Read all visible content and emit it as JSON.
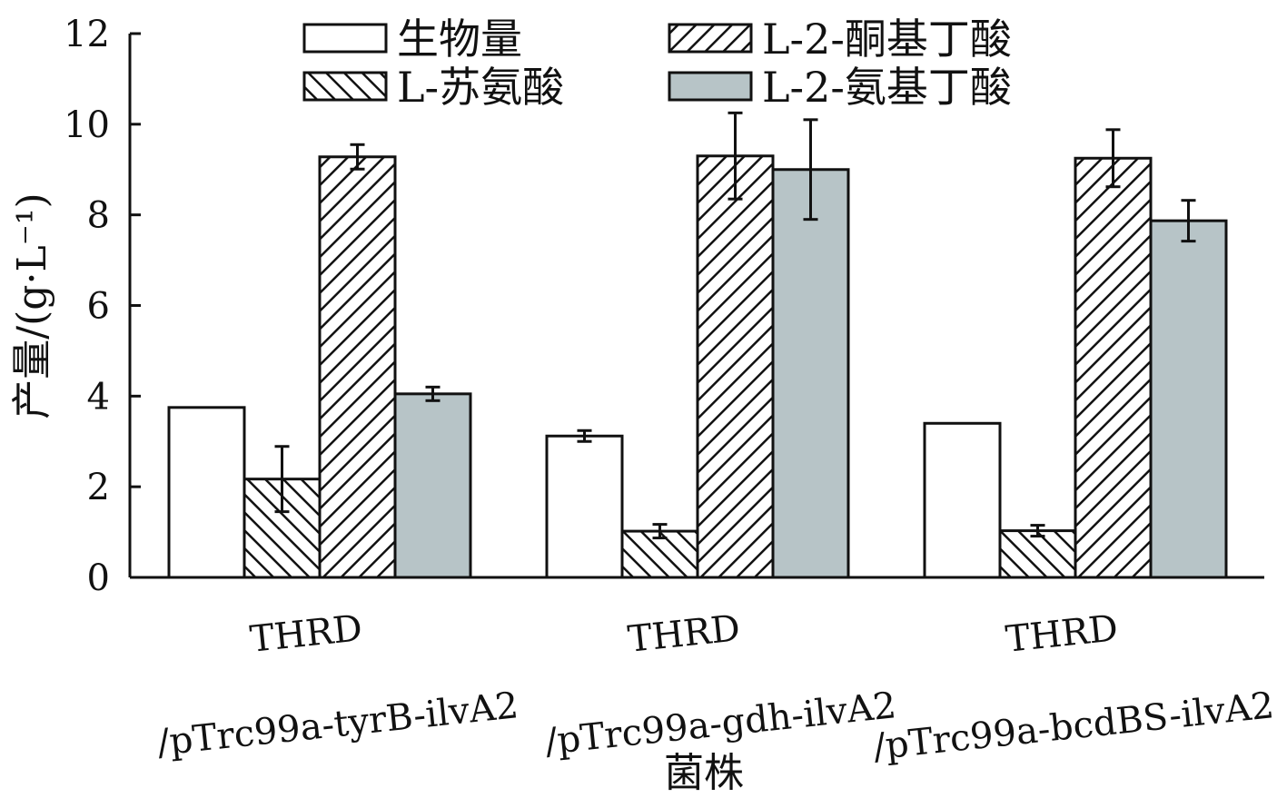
{
  "chart_data": {
    "type": "bar",
    "ylabel": "产量/(g·L⁻¹)",
    "xlabel": "菌株",
    "ylim": [
      0,
      12
    ],
    "yticks": [
      0,
      2,
      4,
      6,
      8,
      10,
      12
    ],
    "categories": [
      {
        "line1": "THRD",
        "line2": "/pTrc99a-tyrB-ilvA2"
      },
      {
        "line1": "THRD",
        "line2": "/pTrc99a-gdh-ilvA2"
      },
      {
        "line1": "THRD",
        "line2": "/pTrc99a-bcdBS-ilvA2"
      }
    ],
    "series": [
      {
        "name": "生物量",
        "fill": "white",
        "values": [
          3.75,
          3.12,
          3.4
        ],
        "errors": [
          0.0,
          0.12,
          0.0
        ]
      },
      {
        "name": "L-苏氨酸",
        "fill": "hatch-fwd",
        "values": [
          2.17,
          1.02,
          1.03
        ],
        "errors": [
          0.72,
          0.15,
          0.12
        ]
      },
      {
        "name": "L-2-酮基丁酸",
        "fill": "hatch-back",
        "values": [
          9.28,
          9.3,
          9.25
        ],
        "errors": [
          0.27,
          0.95,
          0.63
        ]
      },
      {
        "name": "L-2-氨基丁酸",
        "fill": "#b7c4c7",
        "values": [
          4.05,
          9.0,
          7.87
        ],
        "errors": [
          0.15,
          1.1,
          0.45
        ]
      }
    ],
    "legend_position": "top"
  }
}
